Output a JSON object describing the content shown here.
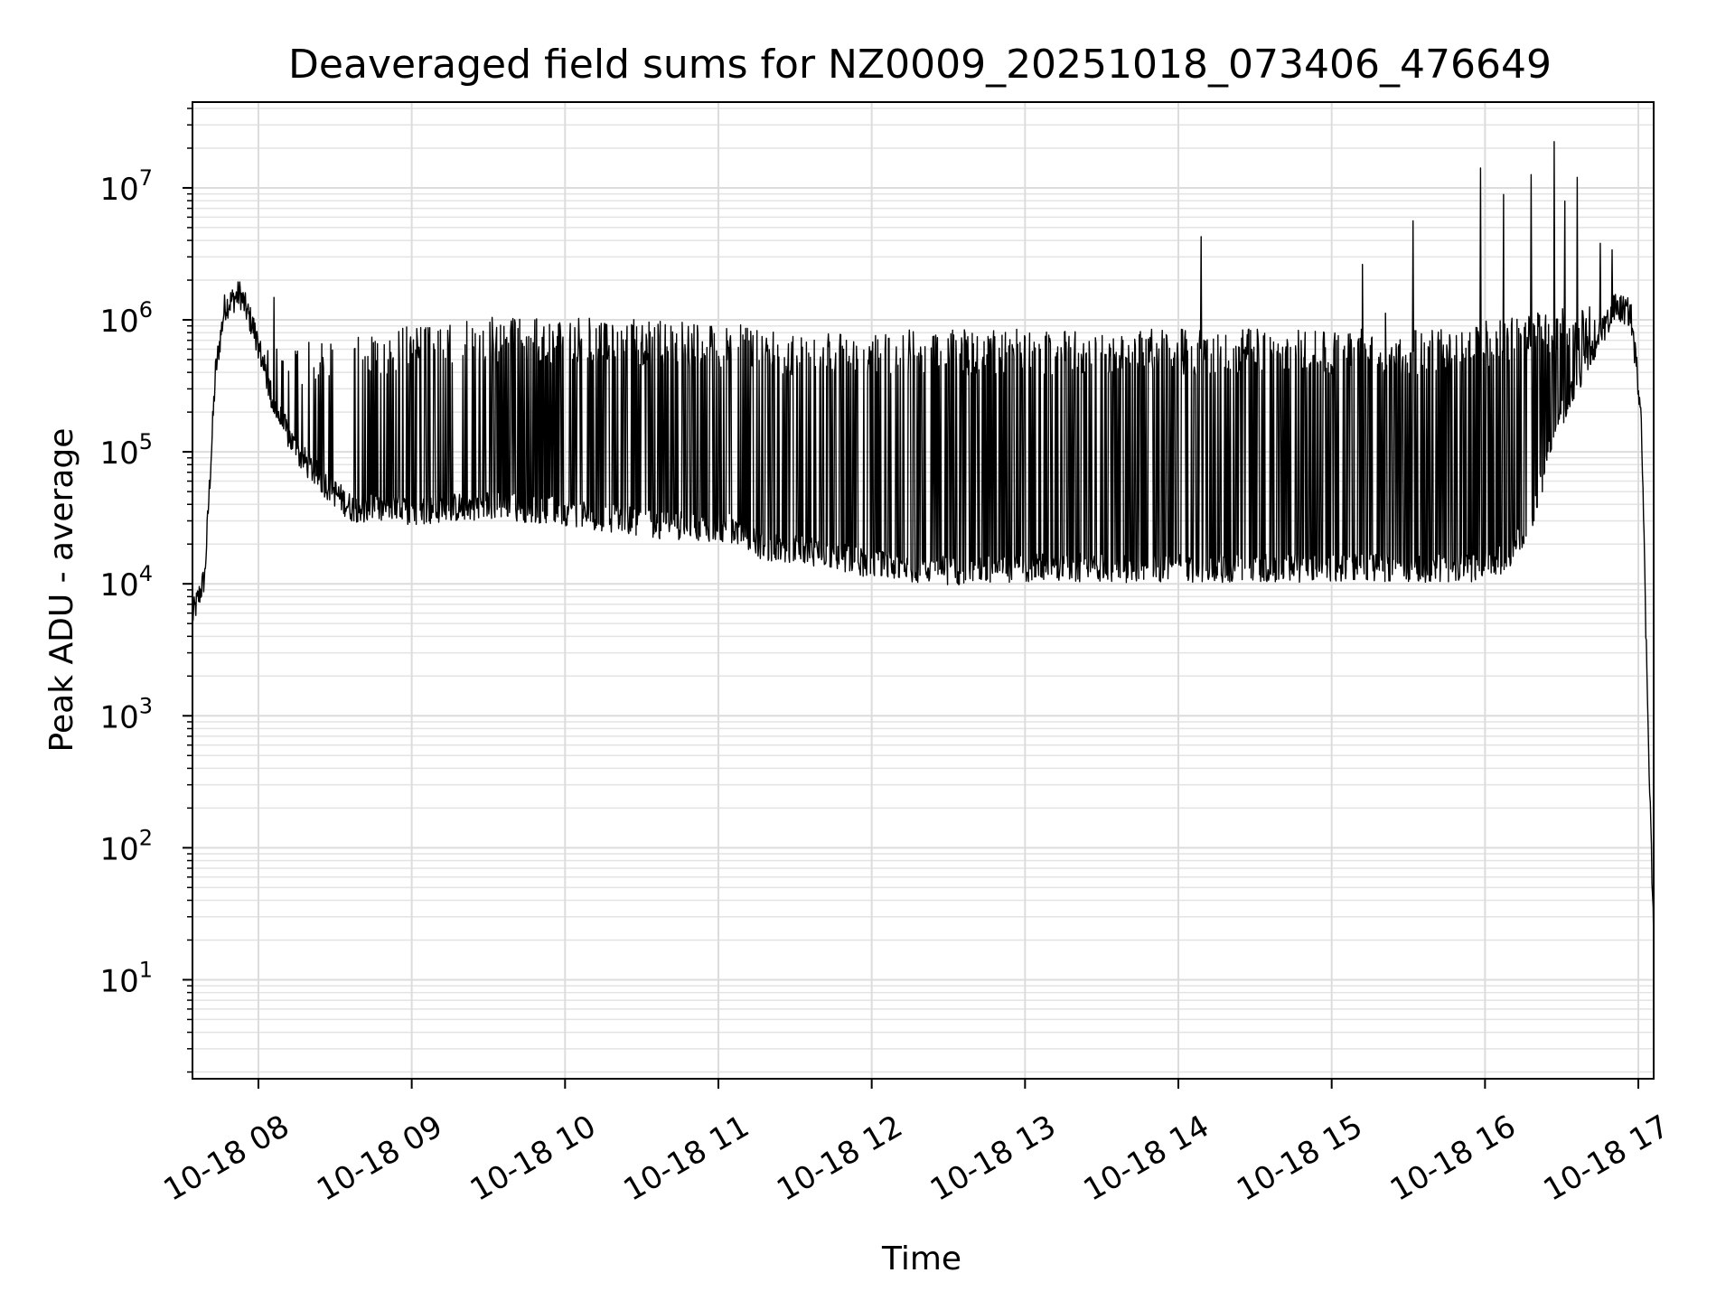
{
  "chart_data": {
    "type": "line",
    "title": "Deaveraged field sums for NZ0009_20251018_073406_476649",
    "xlabel": "Time",
    "ylabel": "Peak ADU - average",
    "yscale": "log",
    "grid": true,
    "x_unit": "hours since 10-18 00:00",
    "xlim": [
      7.57,
      17.1
    ],
    "ylim_log10": [
      0.25,
      7.65
    ],
    "x_ticks": [
      {
        "value": 8,
        "label": "10-18 08"
      },
      {
        "value": 9,
        "label": "10-18 09"
      },
      {
        "value": 10,
        "label": "10-18 10"
      },
      {
        "value": 11,
        "label": "10-18 11"
      },
      {
        "value": 12,
        "label": "10-18 12"
      },
      {
        "value": 13,
        "label": "10-18 13"
      },
      {
        "value": 14,
        "label": "10-18 14"
      },
      {
        "value": 15,
        "label": "10-18 15"
      },
      {
        "value": 16,
        "label": "10-18 16"
      },
      {
        "value": 17,
        "label": "10-18 17"
      }
    ],
    "y_ticks": [
      {
        "exp": 1,
        "base": "10",
        "sup": "1"
      },
      {
        "exp": 2,
        "base": "10",
        "sup": "2"
      },
      {
        "exp": 3,
        "base": "10",
        "sup": "3"
      },
      {
        "exp": 4,
        "base": "10",
        "sup": "4"
      },
      {
        "exp": 5,
        "base": "10",
        "sup": "5"
      },
      {
        "exp": 6,
        "base": "10",
        "sup": "6"
      },
      {
        "exp": 7,
        "base": "10",
        "sup": "7"
      }
    ],
    "series": [
      {
        "name": "Peak ADU - average",
        "color": "#000000",
        "baseline_log10": [
          [
            7.57,
            3.75
          ],
          [
            7.65,
            4.05
          ],
          [
            7.72,
            5.6
          ],
          [
            7.78,
            6.1
          ],
          [
            7.88,
            6.2
          ],
          [
            7.98,
            5.9
          ],
          [
            8.1,
            5.35
          ],
          [
            8.25,
            5.0
          ],
          [
            8.4,
            4.8
          ],
          [
            8.6,
            4.58
          ],
          [
            9.0,
            4.55
          ],
          [
            9.5,
            4.6
          ],
          [
            10.0,
            4.55
          ],
          [
            10.6,
            4.45
          ],
          [
            11.1,
            4.42
          ],
          [
            11.3,
            4.28
          ],
          [
            11.6,
            4.25
          ],
          [
            12.0,
            4.15
          ],
          [
            12.5,
            4.1
          ],
          [
            13.0,
            4.12
          ],
          [
            14.0,
            4.12
          ],
          [
            15.0,
            4.12
          ],
          [
            15.9,
            4.12
          ],
          [
            16.15,
            4.2
          ],
          [
            16.3,
            4.5
          ],
          [
            16.5,
            5.3
          ],
          [
            16.7,
            5.75
          ],
          [
            16.85,
            6.1
          ],
          [
            16.95,
            6.05
          ],
          [
            17.02,
            5.3
          ],
          [
            17.05,
            3.6
          ],
          [
            17.1,
            1.3
          ]
        ],
        "burst_top_log10": [
          [
            8.0,
            5.8
          ],
          [
            8.5,
            5.9
          ],
          [
            9.0,
            5.95
          ],
          [
            9.5,
            6.02
          ],
          [
            10.0,
            6.02
          ],
          [
            10.5,
            6.0
          ],
          [
            11.0,
            5.98
          ],
          [
            11.5,
            5.92
          ],
          [
            12.0,
            5.93
          ],
          [
            13.0,
            5.93
          ],
          [
            14.0,
            5.93
          ],
          [
            15.0,
            5.93
          ],
          [
            15.8,
            5.93
          ],
          [
            16.2,
            6.05
          ],
          [
            16.6,
            6.1
          ]
        ],
        "spikes": [
          {
            "x": 14.15,
            "log10": 6.63
          },
          {
            "x": 15.2,
            "log10": 6.42
          },
          {
            "x": 15.35,
            "log10": 6.05
          },
          {
            "x": 15.53,
            "log10": 6.75
          },
          {
            "x": 15.97,
            "log10": 7.15
          },
          {
            "x": 16.12,
            "log10": 6.95
          },
          {
            "x": 16.3,
            "log10": 7.1
          },
          {
            "x": 16.45,
            "log10": 7.35
          },
          {
            "x": 16.52,
            "log10": 6.9
          },
          {
            "x": 16.6,
            "log10": 7.08
          },
          {
            "x": 16.75,
            "log10": 6.58
          },
          {
            "x": 16.83,
            "log10": 6.53
          },
          {
            "x": 7.88,
            "log10": 6.23
          },
          {
            "x": 8.1,
            "log10": 6.17
          }
        ]
      }
    ]
  }
}
